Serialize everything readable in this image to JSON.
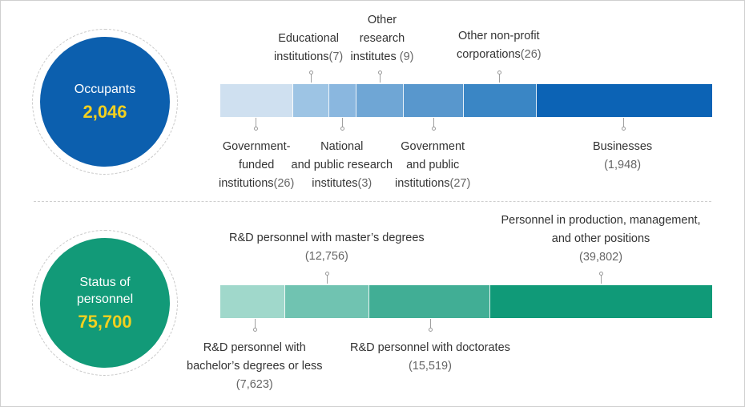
{
  "chart_data": [
    {
      "type": "bar",
      "title": "Occupants",
      "total": "2,046",
      "colors": [
        "#cfe0f0",
        "#9dc4e4",
        "#8ab7df",
        "#6fa6d5",
        "#5897cd",
        "#3a86c5",
        "#0c63b5"
      ],
      "circle_color": "#0c5fae",
      "categories": [
        "Government-funded institutions",
        "Educational institutions",
        "National and public research institutes",
        "Other research institutes",
        "Government and public institutions",
        "Other non-profit corporations",
        "Businesses"
      ],
      "values": [
        26,
        7,
        3,
        9,
        27,
        26,
        1948
      ],
      "labels": [
        {
          "lines": [
            "Government-",
            "funded",
            "institutions"
          ],
          "value": "(26)"
        },
        {
          "lines": [
            "Educational",
            "institutions"
          ],
          "value": "(7)"
        },
        {
          "lines": [
            "National",
            "and public research",
            "institutes"
          ],
          "value": "(3)"
        },
        {
          "lines": [
            "Other",
            "research",
            "institutes"
          ],
          "value": " (9)"
        },
        {
          "lines": [
            "Government",
            "and public",
            "institutions"
          ],
          "value": "(27)"
        },
        {
          "lines": [
            "Other non-profit",
            "corporations"
          ],
          "value": "(26)"
        },
        {
          "lines": [
            "Businesses"
          ],
          "value": "(1,948)"
        }
      ]
    },
    {
      "type": "bar",
      "title": "Status of personnel",
      "total": "75,700",
      "colors": [
        "#a0d8cb",
        "#70c3b1",
        "#41ae95",
        "#109a78"
      ],
      "circle_color": "#129a78",
      "categories": [
        "R&D personnel with bachelor’s degrees or less",
        "R&D personnel with master’s degrees",
        "R&D personnel with doctorates",
        "Personnel in production, management, and other positions"
      ],
      "values": [
        7623,
        12756,
        15519,
        39802
      ],
      "labels": [
        {
          "lines": [
            "R&D personnel with",
            "bachelor’s degrees or less"
          ],
          "value": "(7,623)"
        },
        {
          "lines": [
            "R&D personnel with master’s degrees"
          ],
          "value": "(12,756)"
        },
        {
          "lines": [
            "R&D personnel with doctorates"
          ],
          "value": "(15,519)"
        },
        {
          "lines": [
            "Personnel in production, management,",
            "and other positions"
          ],
          "value": "(39,802)"
        }
      ]
    }
  ],
  "circles": [
    {
      "title_lines": [
        "Occupants"
      ],
      "value": "2,046"
    },
    {
      "title_lines": [
        "Status of",
        "personnel"
      ],
      "value": "75,700"
    }
  ]
}
